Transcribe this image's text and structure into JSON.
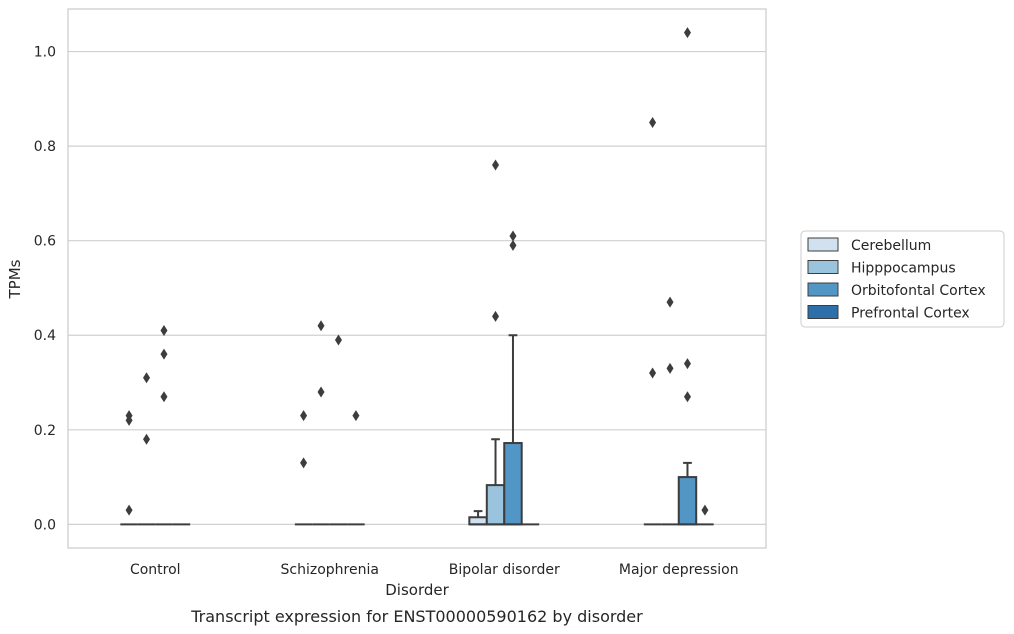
{
  "chart_data": {
    "type": "box",
    "title": "",
    "caption": "Transcript expression for ENST00000590162 by disorder",
    "xlabel": "Disorder",
    "ylabel": "TPMs",
    "ylim": [
      -0.05,
      1.09
    ],
    "yticks": [
      0.0,
      0.2,
      0.4,
      0.6,
      0.8,
      1.0
    ],
    "ytick_labels": [
      "0.0",
      "0.2",
      "0.4",
      "0.6",
      "0.8",
      "1.0"
    ],
    "grid": "horizontal",
    "legend_position": "right",
    "categories": [
      "Control",
      "Schizophrenia",
      "Bipolar disorder",
      "Major depression"
    ],
    "series": [
      {
        "name": "Cerebellum",
        "color": "#d1e1ef",
        "boxes": [
          {
            "q1": 0,
            "median": 0,
            "q3": 0,
            "whisker_low": 0,
            "whisker_high": 0,
            "outliers": [
              0.23,
              0.22,
              0.03
            ]
          },
          {
            "q1": 0,
            "median": 0,
            "q3": 0,
            "whisker_low": 0,
            "whisker_high": 0,
            "outliers": [
              0.23,
              0.13
            ]
          },
          {
            "q1": 0,
            "median": 0,
            "q3": 0.015,
            "whisker_low": 0,
            "whisker_high": 0.028,
            "outliers": []
          },
          {
            "q1": 0,
            "median": 0,
            "q3": 0,
            "whisker_low": 0,
            "whisker_high": 0,
            "outliers": [
              0.85,
              0.32
            ]
          }
        ]
      },
      {
        "name": "Hipppocampus",
        "color": "#9ac4de",
        "boxes": [
          {
            "q1": 0,
            "median": 0,
            "q3": 0,
            "whisker_low": 0,
            "whisker_high": 0,
            "outliers": [
              0.31,
              0.18
            ]
          },
          {
            "q1": 0,
            "median": 0,
            "q3": 0,
            "whisker_low": 0,
            "whisker_high": 0,
            "outliers": [
              0.42,
              0.28
            ]
          },
          {
            "q1": 0,
            "median": 0,
            "q3": 0.083,
            "whisker_low": 0,
            "whisker_high": 0.18,
            "outliers": [
              0.76,
              0.44
            ]
          },
          {
            "q1": 0,
            "median": 0,
            "q3": 0,
            "whisker_low": 0,
            "whisker_high": 0,
            "outliers": [
              0.47,
              0.33
            ]
          }
        ]
      },
      {
        "name": "Orbitofontal Cortex",
        "color": "#5296c6",
        "boxes": [
          {
            "q1": 0,
            "median": 0,
            "q3": 0,
            "whisker_low": 0,
            "whisker_high": 0,
            "outliers": [
              0.41,
              0.36,
              0.27
            ]
          },
          {
            "q1": 0,
            "median": 0,
            "q3": 0,
            "whisker_low": 0,
            "whisker_high": 0,
            "outliers": [
              0.39
            ]
          },
          {
            "q1": 0,
            "median": 0,
            "q3": 0.172,
            "whisker_low": 0,
            "whisker_high": 0.4,
            "outliers": [
              0.61,
              0.59
            ]
          },
          {
            "q1": 0,
            "median": 0,
            "q3": 0.1,
            "whisker_low": 0,
            "whisker_high": 0.13,
            "outliers": [
              1.04,
              0.34,
              0.27
            ]
          }
        ]
      },
      {
        "name": "Prefrontal Cortex",
        "color": "#2d6fab",
        "boxes": [
          {
            "q1": 0,
            "median": 0,
            "q3": 0,
            "whisker_low": 0,
            "whisker_high": 0,
            "outliers": []
          },
          {
            "q1": 0,
            "median": 0,
            "q3": 0,
            "whisker_low": 0,
            "whisker_high": 0,
            "outliers": [
              0.23
            ]
          },
          {
            "q1": 0,
            "median": 0,
            "q3": 0,
            "whisker_low": 0,
            "whisker_high": 0,
            "outliers": []
          },
          {
            "q1": 0,
            "median": 0,
            "q3": 0,
            "whisker_low": 0,
            "whisker_high": 0,
            "outliers": [
              0.03
            ]
          }
        ]
      }
    ]
  }
}
